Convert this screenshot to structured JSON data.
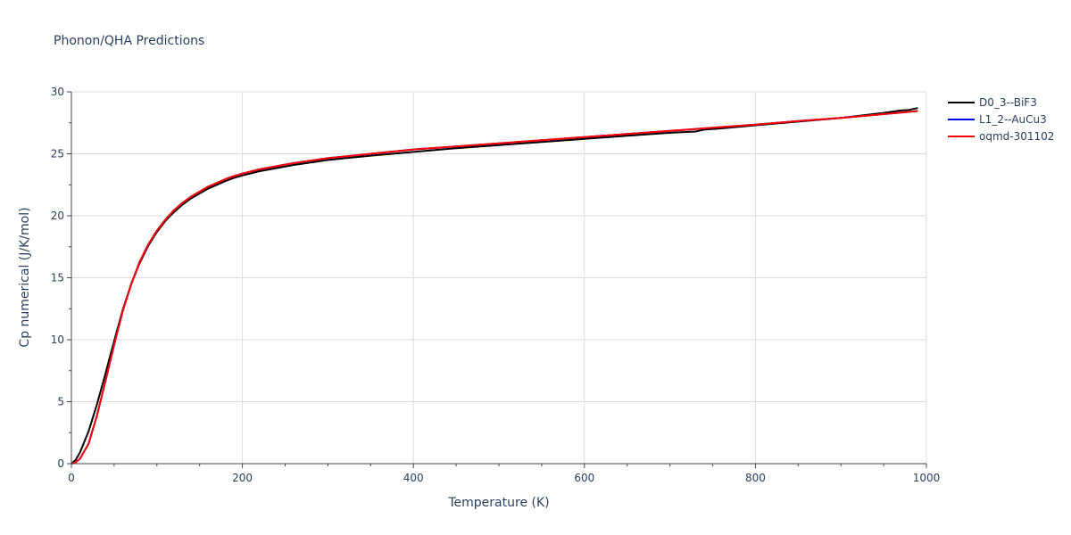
{
  "chart_data": {
    "type": "line",
    "title": "Phonon/QHA Predictions",
    "xlabel": "Temperature (K)",
    "ylabel": "Cp numerical (J/K/mol)",
    "xlim": [
      0,
      1000
    ],
    "ylim": [
      0,
      30
    ],
    "x_ticks": [
      0,
      200,
      400,
      600,
      800,
      1000
    ],
    "y_ticks": [
      0,
      5,
      10,
      15,
      20,
      25,
      30
    ],
    "grid": true,
    "legend_position": "top-right",
    "series": [
      {
        "name": "D0_3--BiF3",
        "color": "#000000",
        "x": [
          0,
          5,
          10,
          20,
          30,
          40,
          50,
          60,
          70,
          80,
          90,
          100,
          110,
          120,
          130,
          140,
          150,
          160,
          170,
          180,
          190,
          200,
          220,
          240,
          260,
          280,
          300,
          350,
          400,
          450,
          500,
          550,
          600,
          650,
          700,
          730,
          740,
          760,
          800,
          850,
          900,
          950,
          970,
          980,
          990
        ],
        "y": [
          0,
          0.3,
          0.9,
          2.6,
          4.8,
          7.3,
          9.9,
          12.4,
          14.5,
          16.2,
          17.6,
          18.7,
          19.6,
          20.3,
          20.9,
          21.4,
          21.8,
          22.2,
          22.5,
          22.8,
          23.05,
          23.25,
          23.6,
          23.85,
          24.1,
          24.3,
          24.5,
          24.85,
          25.15,
          25.45,
          25.7,
          25.95,
          26.2,
          26.45,
          26.7,
          26.8,
          26.95,
          27.05,
          27.3,
          27.6,
          27.9,
          28.3,
          28.5,
          28.55,
          28.7
        ]
      },
      {
        "name": "L1_2--AuCu3",
        "color": "#0000ff",
        "x": [
          0,
          5,
          10,
          20,
          30,
          40,
          50,
          60,
          70,
          80,
          90,
          100,
          110,
          120,
          130,
          140,
          150,
          160,
          170,
          180,
          190,
          200,
          220,
          240,
          260,
          280,
          300,
          350,
          400,
          450,
          500,
          550,
          600,
          650,
          700,
          750,
          800,
          850,
          900,
          950,
          990
        ],
        "y": [
          0,
          0.1,
          0.4,
          1.6,
          3.9,
          6.7,
          9.6,
          12.3,
          14.5,
          16.3,
          17.7,
          18.8,
          19.7,
          20.45,
          21.05,
          21.55,
          21.95,
          22.35,
          22.65,
          22.95,
          23.2,
          23.4,
          23.75,
          24.0,
          24.25,
          24.45,
          24.65,
          25.0,
          25.35,
          25.6,
          25.85,
          26.1,
          26.35,
          26.6,
          26.85,
          27.1,
          27.35,
          27.65,
          27.9,
          28.2,
          28.45
        ]
      },
      {
        "name": "oqmd-301102",
        "color": "#ff0000",
        "x": [
          0,
          5,
          10,
          20,
          30,
          40,
          50,
          60,
          70,
          80,
          90,
          100,
          110,
          120,
          130,
          140,
          150,
          160,
          170,
          180,
          190,
          200,
          220,
          240,
          260,
          280,
          300,
          350,
          400,
          450,
          500,
          550,
          600,
          650,
          700,
          750,
          800,
          850,
          900,
          950,
          990
        ],
        "y": [
          0,
          0.1,
          0.4,
          1.6,
          3.9,
          6.7,
          9.6,
          12.3,
          14.5,
          16.3,
          17.7,
          18.8,
          19.7,
          20.45,
          21.05,
          21.55,
          21.95,
          22.35,
          22.65,
          22.95,
          23.2,
          23.4,
          23.75,
          24.0,
          24.25,
          24.45,
          24.65,
          25.0,
          25.35,
          25.6,
          25.85,
          26.1,
          26.35,
          26.6,
          26.85,
          27.1,
          27.35,
          27.65,
          27.9,
          28.2,
          28.45
        ]
      }
    ]
  }
}
